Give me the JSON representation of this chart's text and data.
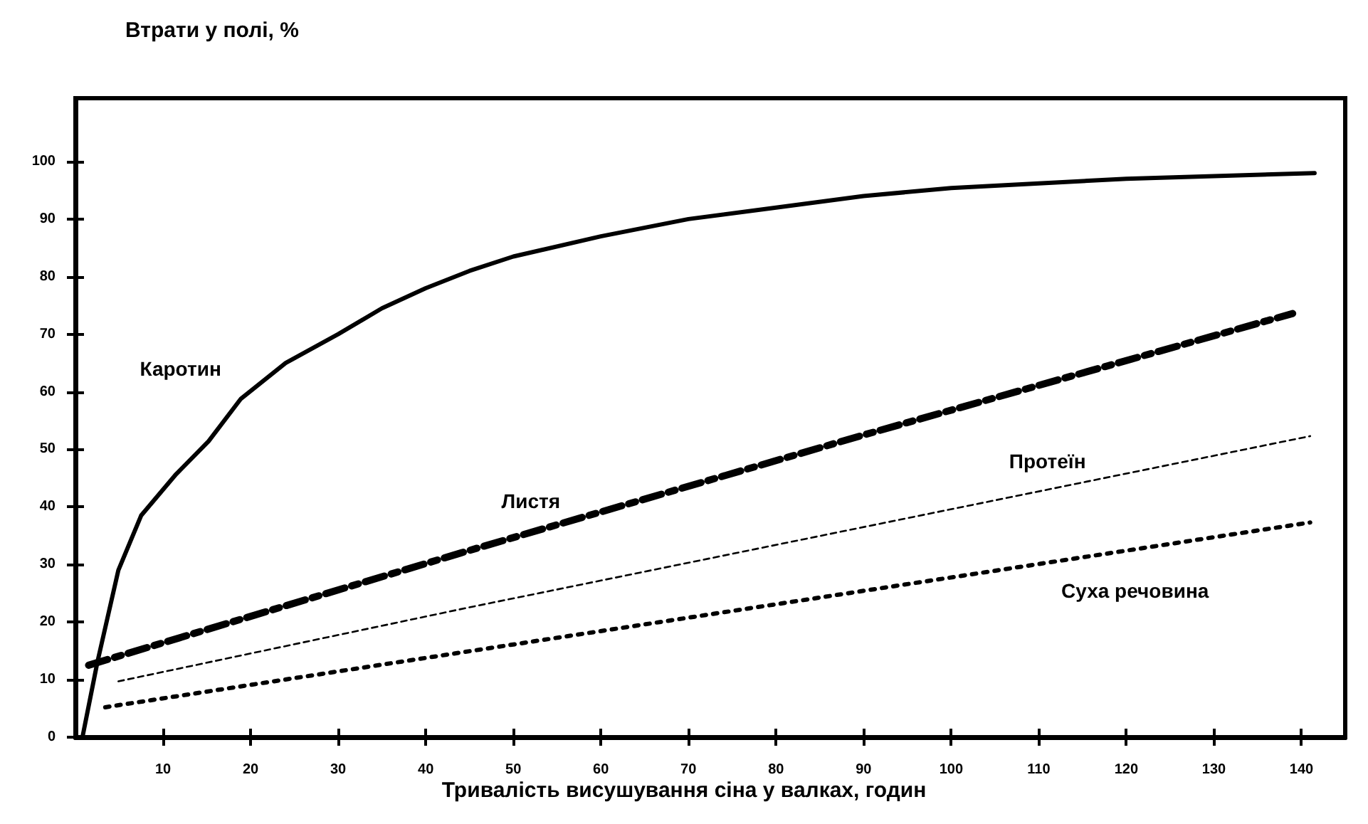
{
  "chart_data": {
    "type": "line",
    "xlabel": "Тривалість висушування сіна у валках, годин",
    "ylabel": "Втрати у полі, %",
    "xlim": [
      0,
      145
    ],
    "ylim": [
      0,
      111
    ],
    "xticks": [
      10,
      20,
      30,
      40,
      50,
      60,
      70,
      80,
      90,
      100,
      110,
      120,
      130,
      140
    ],
    "yticks": [
      0,
      10,
      20,
      30,
      40,
      50,
      60,
      70,
      80,
      90,
      100
    ],
    "grid": false,
    "legend": false,
    "marker": "none",
    "series": [
      {
        "name": "Каротин",
        "color": "#000000",
        "line_style": "solid",
        "x": [
          0.8,
          2.5,
          4.9,
          7.5,
          11.5,
          15.2,
          18.9,
          24,
          30,
          35,
          40,
          45,
          50,
          60,
          70,
          80,
          90,
          100,
          120,
          141.5
        ],
        "values": [
          0,
          13,
          29,
          38.5,
          45.7,
          51.4,
          58.8,
          65,
          70,
          74.5,
          78,
          81,
          83.5,
          87,
          90,
          92,
          94,
          95.4,
          97,
          98
        ]
      },
      {
        "name": "Листя",
        "color": "#000000",
        "line_style": "dashed",
        "x": [
          1.5,
          44,
          90,
          139
        ],
        "values": [
          12.5,
          32,
          52.5,
          73.6
        ]
      },
      {
        "name": "Протеїн",
        "color": "#000000",
        "line_style": "dashed",
        "x": [
          4.9,
          44.8,
          141
        ],
        "values": [
          9.7,
          22.5,
          52.3
        ]
      },
      {
        "name": "Суха речовина",
        "color": "#000000",
        "line_style": "dotted",
        "x": [
          3.4,
          44.4,
          141
        ],
        "values": [
          5.2,
          14.8,
          37.3
        ]
      }
    ]
  }
}
